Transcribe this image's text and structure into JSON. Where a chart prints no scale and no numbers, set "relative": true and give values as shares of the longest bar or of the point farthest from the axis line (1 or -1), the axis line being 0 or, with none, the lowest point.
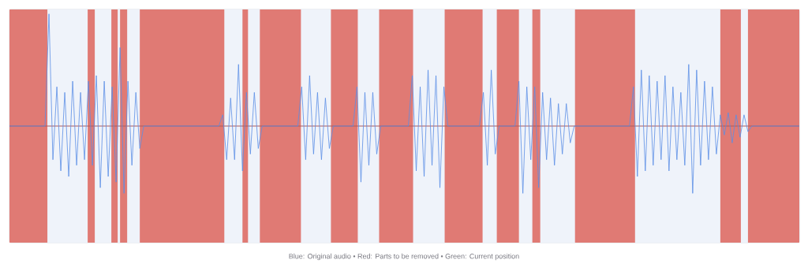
{
  "chart_data": {
    "type": "line",
    "relative": true,
    "marker": "none",
    "categories": [
      null,
      null,
      null,
      null,
      null,
      null,
      null,
      null,
      null,
      null,
      null,
      null,
      null,
      null,
      null,
      null,
      null,
      null,
      null,
      null,
      null,
      null,
      null,
      null,
      null,
      null,
      null,
      null,
      null,
      null,
      null,
      null,
      null,
      null,
      null,
      null,
      null,
      null,
      null,
      null,
      null,
      null,
      null,
      null,
      null,
      null,
      null,
      null,
      null,
      null,
      null,
      null,
      null,
      null,
      null,
      null,
      null,
      null,
      null,
      null,
      null,
      null,
      null,
      null,
      null,
      null,
      null,
      null,
      null,
      null,
      null,
      null,
      null,
      null,
      null,
      null,
      null,
      null,
      null,
      null,
      null,
      null,
      null,
      null,
      null,
      null,
      null,
      null,
      null,
      null,
      null,
      null,
      null,
      null,
      null,
      null,
      null,
      null,
      null,
      null,
      null,
      null,
      null,
      null,
      null,
      null,
      null,
      null,
      null,
      null,
      null,
      null,
      null,
      null,
      null,
      null,
      null,
      null,
      null,
      null,
      null,
      null,
      null,
      null,
      null,
      null,
      null,
      null,
      null,
      null,
      null,
      null,
      null,
      null,
      null,
      null,
      null,
      null,
      null,
      null,
      null,
      null,
      null,
      null,
      null,
      null,
      null,
      null,
      null,
      null,
      null,
      null,
      null,
      null,
      null,
      null,
      null,
      null,
      null,
      null,
      null,
      null,
      null,
      null,
      null,
      null,
      null,
      null,
      null,
      null,
      null,
      null,
      null,
      null,
      null,
      null,
      null,
      null,
      null,
      null,
      null,
      null,
      null,
      null,
      null,
      null,
      null,
      null,
      null,
      null,
      null,
      null,
      null,
      null,
      null,
      null,
      null,
      null,
      null,
      null,
      null
    ],
    "series": [
      {
        "color": "#5b8ee6",
        "values": [
          0,
          0,
          0,
          0,
          0,
          0,
          0,
          0,
          0,
          0,
          1,
          -0.3,
          0.35,
          -0.4,
          0.3,
          -0.45,
          0.4,
          -0.35,
          0.3,
          -0.3,
          0.4,
          -0.35,
          0.45,
          -0.55,
          0.4,
          -0.45,
          0.35,
          -0.5,
          0.7,
          -0.6,
          0.4,
          -0.35,
          0.3,
          -0.2,
          0,
          0,
          0,
          0,
          0,
          0,
          0,
          0,
          0,
          0,
          0,
          0,
          0,
          0,
          0,
          0,
          0,
          0,
          0,
          0,
          0.1,
          -0.3,
          0.25,
          -0.3,
          0.55,
          -0.4,
          0.3,
          -0.25,
          0.3,
          -0.2,
          0,
          0,
          0,
          0,
          0,
          0,
          0,
          0,
          0,
          0,
          0.35,
          -0.3,
          0.45,
          -0.25,
          0.3,
          -0.3,
          0.25,
          -0.2,
          0,
          0,
          0,
          0,
          0,
          0,
          0.35,
          -0.5,
          0.3,
          -0.35,
          0.3,
          -0.25,
          0,
          0,
          0,
          0,
          0,
          0,
          0,
          0,
          0.45,
          -0.4,
          0.35,
          -0.45,
          0.5,
          -0.35,
          0.45,
          -0.55,
          0.35,
          0,
          0,
          0,
          0,
          0,
          0,
          0,
          0,
          0,
          0.3,
          -0.35,
          0.5,
          -0.25,
          0,
          0,
          0,
          0,
          0,
          0.4,
          -0.6,
          0.35,
          -0.3,
          0.35,
          -0.55,
          0.3,
          -0.3,
          0.25,
          -0.35,
          0.2,
          -0.25,
          0.2,
          -0.15,
          0,
          0,
          0,
          0,
          0,
          0,
          0,
          0,
          0,
          0,
          0,
          0,
          0,
          0,
          0,
          0.35,
          -0.45,
          0.5,
          -0.4,
          0.45,
          -0.35,
          0.4,
          -0.3,
          0.45,
          -0.4,
          0.35,
          -0.3,
          0.3,
          -0.35,
          0.55,
          -0.6,
          0.5,
          -0.35,
          0.4,
          -0.3,
          0.35,
          -0.25,
          0.1,
          -0.08,
          0.12,
          -0.15,
          0.1,
          -0.1,
          0.1,
          -0.05,
          0,
          0,
          0,
          0,
          0,
          0,
          0,
          0,
          0,
          0,
          0,
          0,
          0
        ]
      }
    ],
    "ref_lines": [
      {
        "axis": "y",
        "value": 0,
        "color": "#aa5a5f"
      }
    ],
    "annotations": [
      "Blue: Original audio • Red: Parts to be removed • Green: Current position"
    ]
  }
}
